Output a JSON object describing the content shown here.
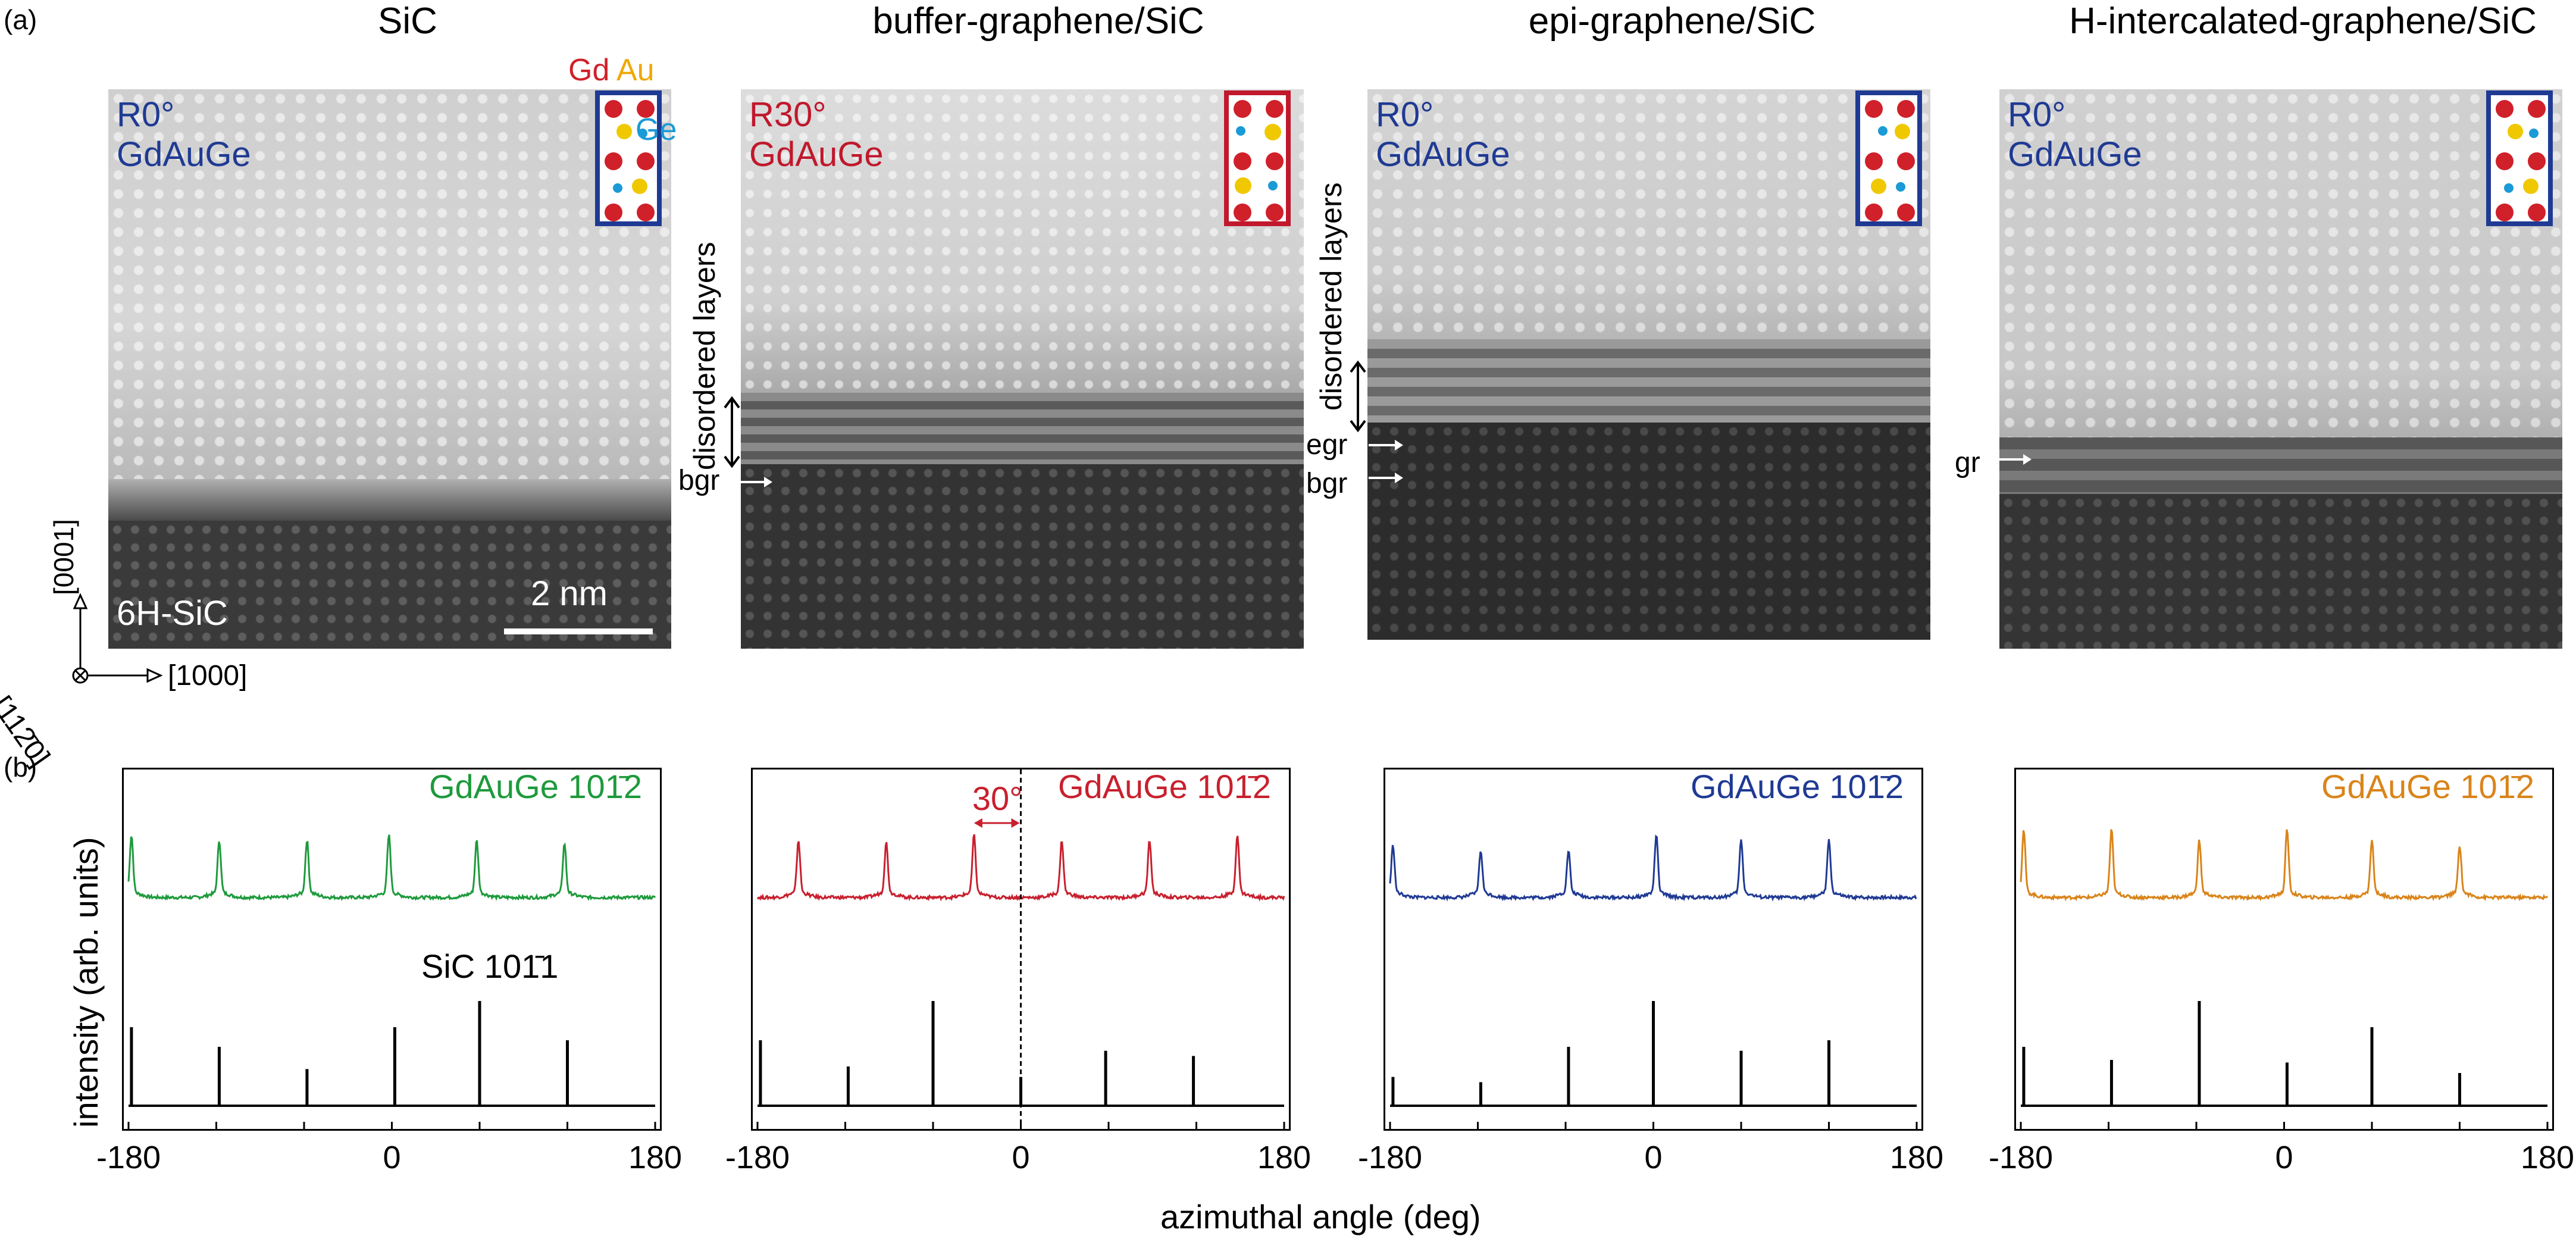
{
  "panel_a_label": "(a)",
  "panel_b_label": "(b)",
  "micrographs": [
    {
      "title": "SiC",
      "orientation": "R0°",
      "compound": "GdAuGe",
      "color": "#1f3a93"
    },
    {
      "title": "buffer-graphene/SiC",
      "orientation": "R30°",
      "compound": "GdAuGe",
      "color": "#c0182c"
    },
    {
      "title": "epi-graphene/SiC",
      "orientation": "R0°",
      "compound": "GdAuGe",
      "color": "#1f3a93"
    },
    {
      "title": "H-intercalated-graphene/SiC",
      "orientation": "R0°",
      "compound": "GdAuGe",
      "color": "#1f3a93"
    }
  ],
  "legend": {
    "gd": "Gd",
    "au": "Au",
    "ge": "Ge",
    "gd_color": "#d0202a",
    "au_color": "#f0a800",
    "ge_color": "#1a9ad6"
  },
  "annotations": {
    "substrate": "6H-SiC",
    "scale_bar": "2 nm",
    "disordered_layers": "disordered layers",
    "bgr": "bgr",
    "egr": "egr",
    "gr": "gr",
    "axis_0001": "[0001]",
    "axis_1000": "[1000]",
    "axis_1120": "[112̄0]"
  },
  "axes": {
    "ylabel": "intensity (arb. units)",
    "xlabel": "azimuthal angle (deg)",
    "xticks": [
      "-180",
      "0",
      "180"
    ]
  },
  "chart_data": [
    {
      "type": "line",
      "panel": 1,
      "xlim": [
        -180,
        180
      ],
      "series": [
        {
          "name": "GdAuGe 10-12",
          "label": "GdAuGe 101̄2",
          "color": "#1e9a3c",
          "peaks_deg": [
            -178,
            -118,
            -58,
            -2,
            58,
            118
          ],
          "peak_heights": [
            0.55,
            0.5,
            0.5,
            0.55,
            0.5,
            0.47
          ]
        },
        {
          "name": "SiC 10-11",
          "label": "SiC 101̄1",
          "color": "#000000",
          "peaks_deg": [
            -178,
            -118,
            -58,
            2,
            60,
            120
          ],
          "peak_heights": [
            0.6,
            0.45,
            0.28,
            0.6,
            0.8,
            0.5
          ]
        }
      ]
    },
    {
      "type": "line",
      "panel": 2,
      "xlim": [
        -180,
        180
      ],
      "rotation_marker_deg": 0,
      "rotation_label": "30°",
      "series": [
        {
          "name": "GdAuGe 10-12",
          "label": "GdAuGe 101̄2",
          "color": "#c8202e",
          "peaks_deg": [
            -152,
            -92,
            -32,
            28,
            88,
            148
          ],
          "peak_heights": [
            0.5,
            0.48,
            0.55,
            0.5,
            0.5,
            0.55
          ]
        },
        {
          "name": "SiC 10-11",
          "label": "",
          "color": "#000000",
          "peaks_deg": [
            -178,
            -118,
            -60,
            0,
            58,
            118
          ],
          "peak_heights": [
            0.5,
            0.3,
            0.8,
            0.22,
            0.42,
            0.38
          ]
        }
      ]
    },
    {
      "type": "line",
      "panel": 3,
      "xlim": [
        -180,
        180
      ],
      "series": [
        {
          "name": "GdAuGe 10-12",
          "label": "GdAuGe 101̄2",
          "color": "#1f3a93",
          "peaks_deg": [
            -178,
            -118,
            -58,
            2,
            60,
            120
          ],
          "peak_heights": [
            0.45,
            0.4,
            0.4,
            0.55,
            0.5,
            0.5
          ]
        },
        {
          "name": "SiC 10-11",
          "label": "",
          "color": "#000000",
          "peaks_deg": [
            -178,
            -118,
            -58,
            0,
            60,
            120
          ],
          "peak_heights": [
            0.22,
            0.18,
            0.45,
            0.8,
            0.42,
            0.5
          ]
        }
      ]
    },
    {
      "type": "line",
      "panel": 4,
      "xlim": [
        -180,
        180
      ],
      "series": [
        {
          "name": "GdAuGe 10-12",
          "label": "GdAuGe 101̄2",
          "color": "#d9841a",
          "peaks_deg": [
            -178,
            -118,
            -58,
            2,
            60,
            120
          ],
          "peak_heights": [
            0.6,
            0.6,
            0.5,
            0.6,
            0.5,
            0.45
          ]
        },
        {
          "name": "SiC 10-11",
          "label": "",
          "color": "#000000",
          "peaks_deg": [
            -178,
            -118,
            -58,
            2,
            60,
            120
          ],
          "peak_heights": [
            0.45,
            0.35,
            0.8,
            0.33,
            0.6,
            0.25
          ]
        }
      ]
    }
  ]
}
